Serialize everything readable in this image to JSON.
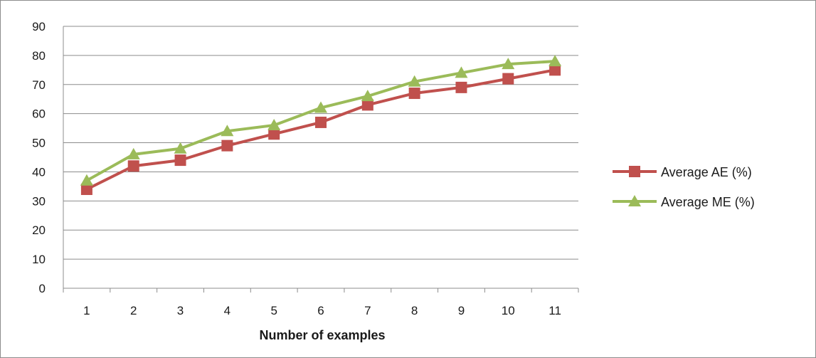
{
  "chart_data": {
    "type": "line",
    "title": "",
    "xlabel": "Number of examples",
    "ylabel": "",
    "categories": [
      "1",
      "2",
      "3",
      "4",
      "5",
      "6",
      "7",
      "8",
      "9",
      "10",
      "11"
    ],
    "ylim": [
      0,
      90
    ],
    "yticks": [
      0,
      10,
      20,
      30,
      40,
      50,
      60,
      70,
      80,
      90
    ],
    "grid": "horizontal",
    "legend_position": "right",
    "series": [
      {
        "name": "Average AE (%)",
        "color": "#c0504d",
        "marker": "square",
        "values": [
          34,
          42,
          44,
          49,
          53,
          57,
          63,
          67,
          69,
          72,
          75
        ]
      },
      {
        "name": "Average ME (%)",
        "color": "#9bbb59",
        "marker": "triangle",
        "values": [
          37,
          46,
          48,
          54,
          56,
          62,
          66,
          71,
          74,
          77,
          78
        ]
      }
    ]
  }
}
